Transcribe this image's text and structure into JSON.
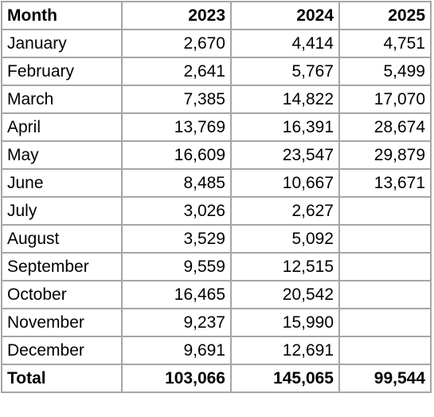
{
  "table": {
    "header": [
      "Month",
      "2023",
      "2024",
      "2025"
    ],
    "rows": [
      [
        "January",
        "2,670",
        "4,414",
        "4,751"
      ],
      [
        "February",
        "2,641",
        "5,767",
        "5,499"
      ],
      [
        "March",
        "7,385",
        "14,822",
        "17,070"
      ],
      [
        "April",
        "13,769",
        "16,391",
        "28,674"
      ],
      [
        "May",
        "16,609",
        "23,547",
        "29,879"
      ],
      [
        "June",
        "8,485",
        "10,667",
        "13,671"
      ],
      [
        "July",
        "3,026",
        "2,627"
      ],
      [
        "August",
        "3,529",
        "5,092"
      ],
      [
        "September",
        "9,559",
        "12,515"
      ],
      [
        "October",
        "16,465",
        "20,542"
      ],
      [
        "November",
        "9,237",
        "15,990"
      ],
      [
        "December",
        "9,691",
        "12,691"
      ]
    ],
    "total": [
      "Total",
      "103,066",
      "145,065",
      "99,544"
    ]
  }
}
